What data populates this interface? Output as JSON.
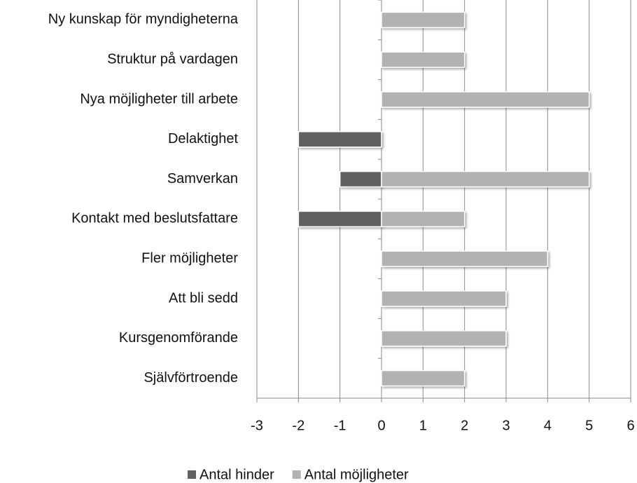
{
  "chart_data": {
    "type": "bar",
    "orientation": "horizontal",
    "categories": [
      "Ny kunskap för myndigheterna",
      "Struktur på vardagen",
      "Nya möjligheter till arbete",
      "Delaktighet",
      "Samverkan",
      "Kontakt med beslutsfattare",
      "Fler möjligheter",
      "Att bli sedd",
      "Kursgenomförande",
      "Självförtroende"
    ],
    "series": [
      {
        "name": "Antal hinder",
        "color": "#606060",
        "values": [
          null,
          null,
          null,
          -2,
          -1,
          -2,
          null,
          null,
          null,
          null
        ]
      },
      {
        "name": "Antal möjligheter",
        "color": "#b2b2b2",
        "values": [
          2,
          2,
          5,
          null,
          5,
          2,
          4,
          3,
          3,
          2
        ]
      }
    ],
    "xlim": [
      -3,
      6
    ],
    "xticks": [
      -3,
      -2,
      -1,
      0,
      1,
      2,
      3,
      4,
      5,
      6
    ],
    "grid": true,
    "legend": "bottom"
  }
}
